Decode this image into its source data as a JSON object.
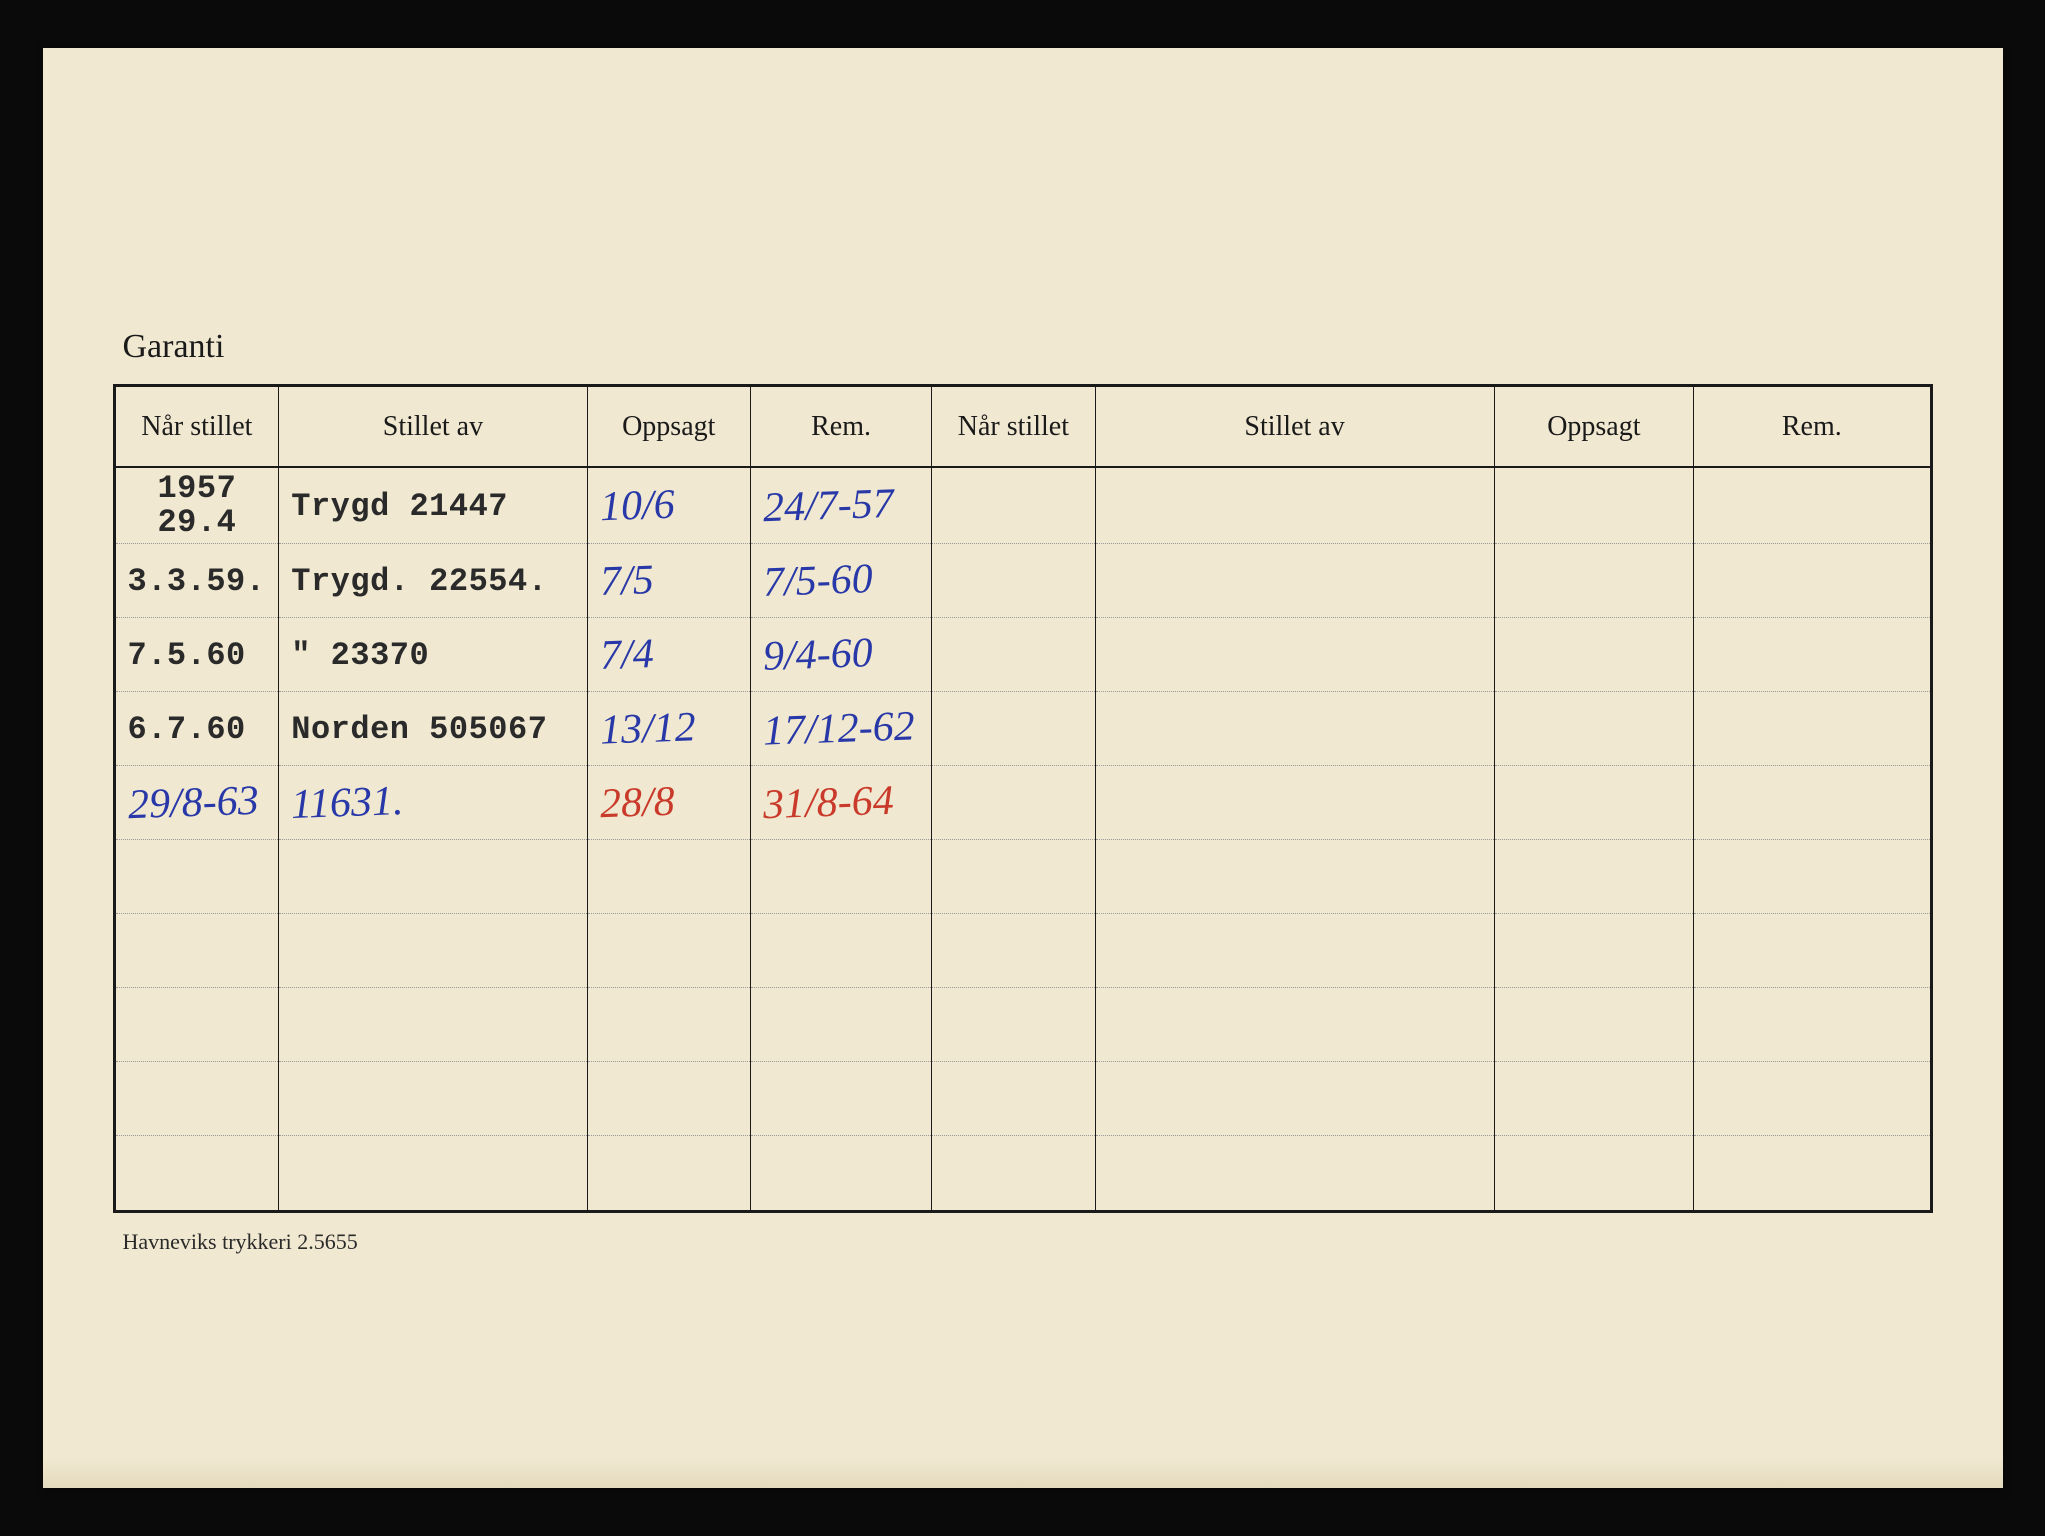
{
  "title": "Garanti",
  "footer": "Havneviks trykkeri 2.5655",
  "colors": {
    "card_bg": "#f0e8d0",
    "border": "#1a1a1a",
    "typed_text": "#2a2a2a",
    "hand_blue": "#2838a8",
    "hand_red": "#c93a2a",
    "dotted_line": "#999999",
    "page_bg": "#0a0a0a"
  },
  "table": {
    "headers": {
      "when": "Når stillet",
      "by": "Stillet av",
      "oppsagt": "Oppsagt",
      "rem": "Rem."
    },
    "rows": [
      {
        "when_year": "1957",
        "when_date": "29.4",
        "when_style": "typed",
        "by": "Trygd  21447",
        "by_style": "typed",
        "oppsagt": "10/6",
        "oppsagt_style": "handwritten-blue",
        "rem": "24/7-57",
        "rem_style": "handwritten-blue"
      },
      {
        "when": "3.3.59.",
        "when_style": "typed",
        "by": "Trygd.  22554.",
        "by_style": "typed",
        "oppsagt": "7/5",
        "oppsagt_style": "handwritten-blue",
        "rem": "7/5-60",
        "rem_style": "handwritten-blue"
      },
      {
        "when": "7.5.60",
        "when_style": "typed",
        "by": "\"    23370",
        "by_style": "typed",
        "oppsagt": "7/4",
        "oppsagt_style": "handwritten-blue",
        "rem": "9/4-60",
        "rem_style": "handwritten-blue"
      },
      {
        "when": "6.7.60",
        "when_style": "typed",
        "by": "Norden 505067",
        "by_style": "typed",
        "oppsagt": "13/12",
        "oppsagt_style": "handwritten-blue",
        "rem": "17/12-62",
        "rem_style": "handwritten-blue"
      },
      {
        "when": "29/8-63",
        "when_style": "handwritten-blue",
        "by": "11631.",
        "by_style": "handwritten-blue",
        "oppsagt": "28/8",
        "oppsagt_style": "handwritten-red",
        "rem": "31/8-64",
        "rem_style": "handwritten-red"
      },
      {
        "when": "",
        "by": "",
        "oppsagt": "",
        "rem": ""
      },
      {
        "when": "",
        "by": "",
        "oppsagt": "",
        "rem": ""
      },
      {
        "when": "",
        "by": "",
        "oppsagt": "",
        "rem": ""
      },
      {
        "when": "",
        "by": "",
        "oppsagt": "",
        "rem": ""
      },
      {
        "when": "",
        "by": "",
        "oppsagt": "",
        "rem": ""
      }
    ]
  }
}
